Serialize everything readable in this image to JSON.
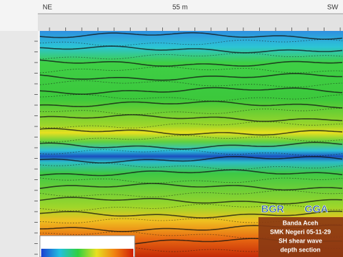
{
  "header": {
    "left": "NE",
    "center": "55 m",
    "right": "SW"
  },
  "logos": [
    "BGR",
    "GGA"
  ],
  "info_box": [
    "Banda Aceh",
    "SMK Negeri 05-11-29",
    "SH shear wave",
    "depth section"
  ]
}
